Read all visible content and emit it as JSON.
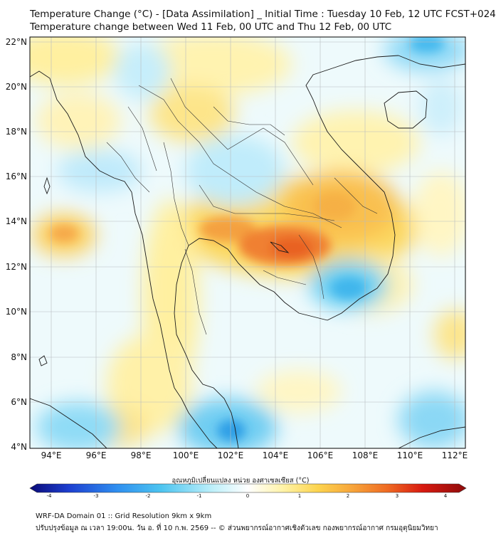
{
  "title_line1": "Temperature Change (°C) - [Data Assimilation] _ Initial Time : Tuesday 10 Feb, 12 UTC FCST+024",
  "title_line2": "Temperature change between Wed 11 Feb, 00 UTC and Thu 12 Feb, 00 UTC",
  "lat_labels": [
    "22°N",
    "20°N",
    "18°N",
    "16°N",
    "14°N",
    "12°N",
    "10°N",
    "8°N",
    "6°N",
    "4°N"
  ],
  "lon_labels": [
    "94°E",
    "96°E",
    "98°E",
    "100°E",
    "102°E",
    "104°E",
    "106°E",
    "108°E",
    "110°E",
    "112°E"
  ],
  "colorbar": {
    "label": "อุณหภูมิเปลี่ยนแปลง หน่วย องศาเซลเซียส (°C)",
    "ticks": [
      "-4",
      "-3",
      "-2",
      "-1",
      "0",
      "1",
      "2",
      "3",
      "4"
    ],
    "range": [
      -4,
      4
    ],
    "colors": [
      "#0a0a78",
      "#1d3fd0",
      "#2f8ff0",
      "#4cc4f0",
      "#bff0fa",
      "#ffffff",
      "#fff3a8",
      "#fcd44e",
      "#f7a43a",
      "#ef6a22",
      "#d81a10",
      "#8e0a0a"
    ]
  },
  "footer_line1": "WRF-DA Domain 01 :: Grid Resolution 9km x 9km",
  "footer_line2": "ปรับปรุงข้อมูล ณ เวลา 19:00น. วัน อ. ที่ 10 ก.พ. 2569 -- © ส่วนพยากรณ์อากาศเชิงตัวเลข กองพยากรณ์อากาศ กรมอุตุนิยมวิทยา"
}
